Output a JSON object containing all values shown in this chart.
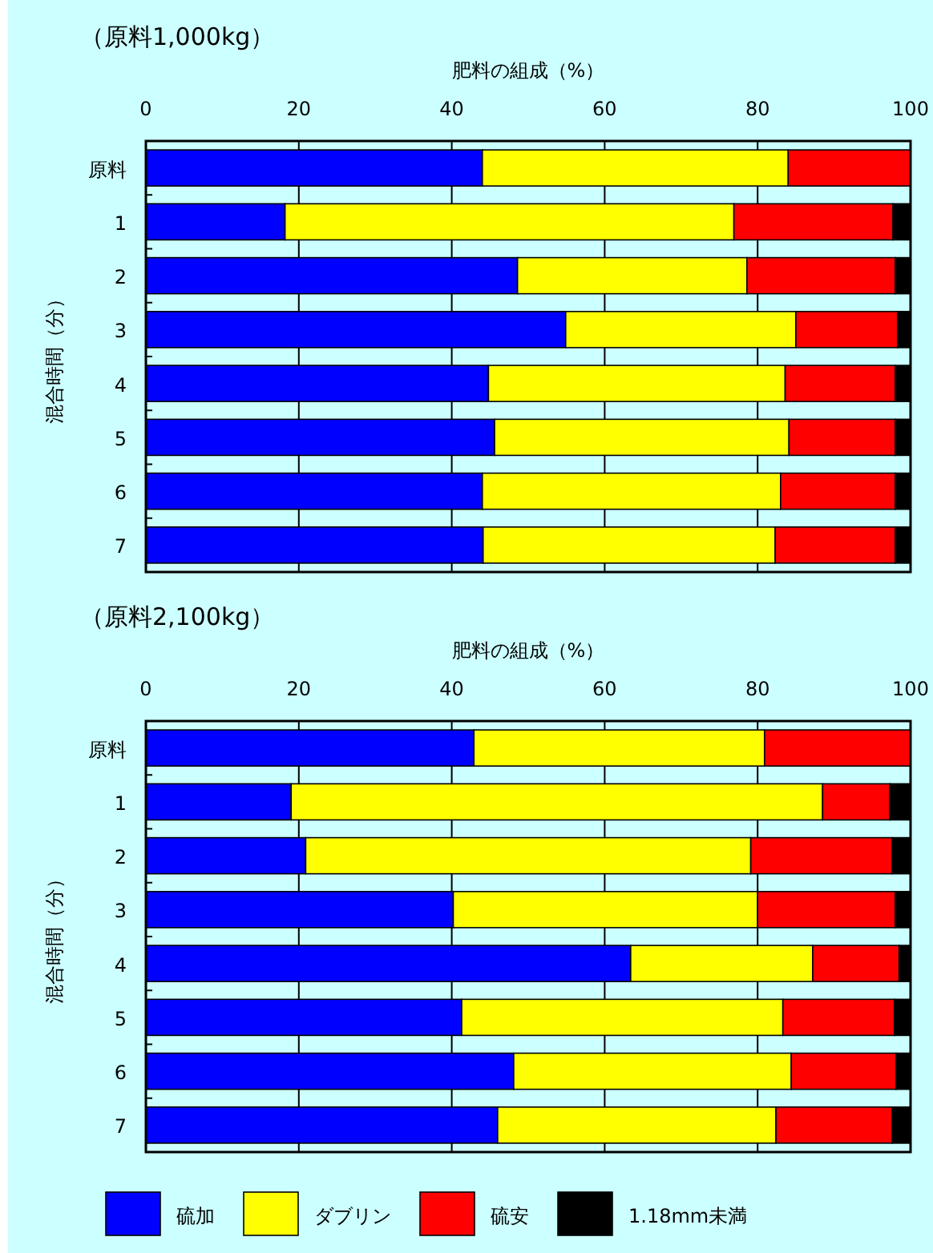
{
  "chart_data": [
    {
      "type": "bar",
      "orientation": "horizontal",
      "stacked": true,
      "title": "（原料1,000kg）",
      "xlabel": "肥料の組成（%）",
      "ylabel": "混合時間（分）",
      "categories": [
        "原料",
        "1",
        "2",
        "3",
        "4",
        "5",
        "6",
        "7"
      ],
      "xlim": [
        0,
        100
      ],
      "xticks": [
        0,
        20,
        40,
        60,
        80,
        100
      ],
      "grid": "x",
      "series": [
        {
          "color": "#0000ff",
          "values": [
            44.0,
            18.2,
            48.6,
            54.9,
            44.8,
            45.6,
            44.0,
            44.1
          ]
        },
        {
          "color": "#ffff00",
          "values": [
            40.0,
            58.7,
            30.0,
            30.1,
            38.8,
            38.5,
            39.0,
            38.2
          ]
        },
        {
          "color": "#ff0000",
          "values": [
            16.0,
            20.8,
            19.4,
            13.3,
            14.4,
            13.9,
            15.0,
            15.7
          ]
        },
        {
          "color": "#000000",
          "values": [
            0,
            2.3,
            2.0,
            1.7,
            2.0,
            2.0,
            2.0,
            2.0
          ]
        }
      ]
    },
    {
      "type": "bar",
      "orientation": "horizontal",
      "stacked": true,
      "title": "（原料2,100kg）",
      "xlabel": "肥料の組成（%）",
      "ylabel": "混合時間（分）",
      "categories": [
        "原料",
        "1",
        "2",
        "3",
        "4",
        "5",
        "6",
        "7"
      ],
      "xlim": [
        0,
        100
      ],
      "xticks": [
        0,
        20,
        40,
        60,
        80,
        100
      ],
      "grid": "x",
      "legend": "bottom",
      "series": [
        {
          "name": "硫加",
          "color": "#0000ff",
          "values": [
            42.9,
            19.0,
            20.9,
            40.2,
            63.4,
            41.3,
            48.1,
            46.0
          ]
        },
        {
          "name": "ダブリン",
          "color": "#ffff00",
          "values": [
            38.0,
            69.5,
            58.2,
            39.8,
            23.8,
            42.0,
            36.3,
            36.4
          ]
        },
        {
          "name": "硫安",
          "color": "#ff0000",
          "values": [
            19.1,
            8.8,
            18.5,
            18.0,
            11.3,
            14.6,
            13.7,
            15.2
          ]
        },
        {
          "name": "1.18mm未満",
          "color": "#000000",
          "values": [
            0,
            2.7,
            2.4,
            2.0,
            1.5,
            2.1,
            1.9,
            2.4
          ]
        }
      ]
    }
  ]
}
